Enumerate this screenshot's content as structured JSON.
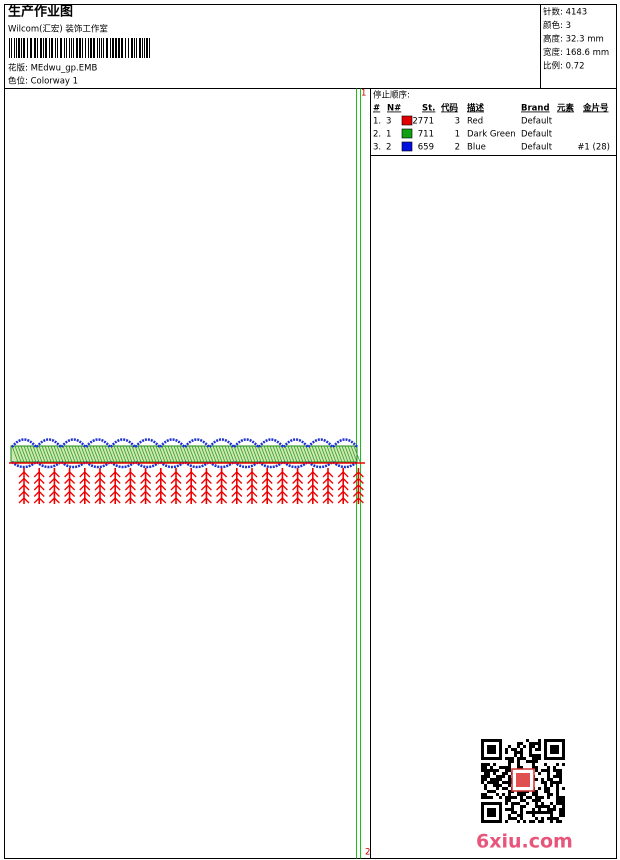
{
  "header": {
    "title": "生产作业图",
    "studio": "Wilcom(汇宏) 装饰工作室",
    "design": "花版: MEdwu_gp.EMB",
    "colorway": "色位: Colorway 1"
  },
  "stats": [
    "针数: 4143",
    "颜色: 3",
    "高度: 32.3 mm",
    "宽度: 168.6 mm",
    "比例: 0.72"
  ],
  "sequence": {
    "title": "停止顺序:",
    "columns": [
      "#",
      "N#",
      "St.",
      "代码",
      "描述",
      "Brand",
      "元素",
      "金片号"
    ],
    "rows": [
      {
        "num": "1.",
        "needle": "3",
        "stitches": "2771",
        "code": "3",
        "desc": "Red",
        "brand": "Default"
      },
      {
        "num": "2.",
        "needle": "1",
        "stitches": "711",
        "code": "1",
        "desc": "Dark Green",
        "brand": "Default"
      },
      {
        "num": "3.",
        "needle": "2",
        "stitches": "659",
        "code": "2",
        "desc": "Blue",
        "brand": "Default",
        "sequin": "#1 (28)"
      }
    ]
  },
  "markers": [
    "1",
    "2"
  ],
  "watermark": "6xiu.com"
}
